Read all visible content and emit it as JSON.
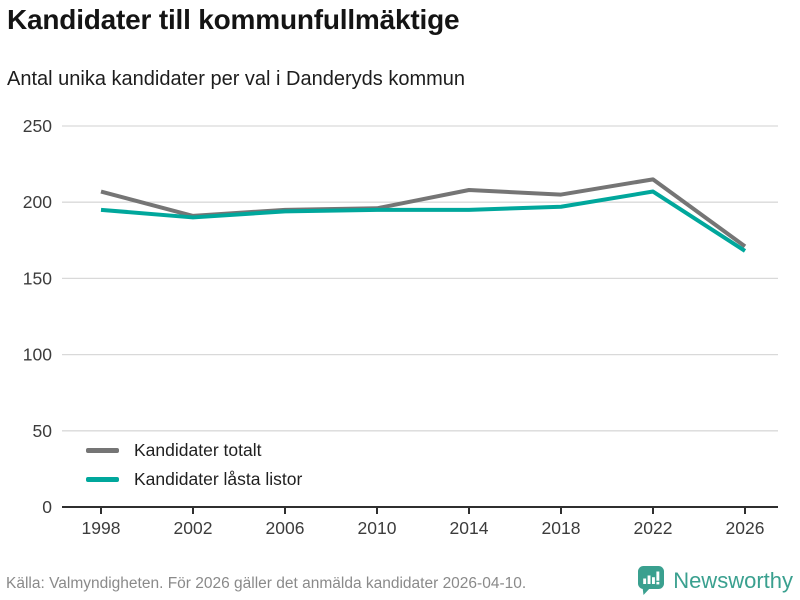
{
  "header": {
    "title": "Kandidater till kommunfullmäktige",
    "subtitle": "Antal unika kandidater per val i Danderyds kommun"
  },
  "chart_data": {
    "type": "line",
    "title": "Kandidater till kommunfullmäktige",
    "subtitle": "Antal unika kandidater per val i Danderyds kommun",
    "categories": [
      "1998",
      "2002",
      "2006",
      "2010",
      "2014",
      "2018",
      "2022",
      "2026"
    ],
    "series": [
      {
        "name": "Kandidater totalt",
        "color": "#757575",
        "values": [
          207,
          191,
          195,
          196,
          208,
          205,
          215,
          171
        ]
      },
      {
        "name": "Kandidater låsta listor",
        "color": "#00a79c",
        "values": [
          195,
          190,
          194,
          195,
          195,
          197,
          207,
          168
        ]
      }
    ],
    "xlabel": "",
    "ylabel": "",
    "ylim": [
      0,
      250
    ],
    "yticks": [
      0,
      50,
      100,
      150,
      200,
      250
    ],
    "grid": true,
    "legend_position": "inside-bottom-left"
  },
  "footer": {
    "source": "Källa: Valmyndigheten. För 2026 gäller det anmälda kandidater 2026-04-10.",
    "brand": "Newsworthy"
  },
  "colors": {
    "total_line": "#757575",
    "locked_line": "#00a79c",
    "brand_teal": "#3aa08f",
    "grid": "#d9d9d9",
    "axis": "#2f2f2f",
    "tick_text": "#3c3c3c",
    "footer_text": "#8a8a8a"
  }
}
